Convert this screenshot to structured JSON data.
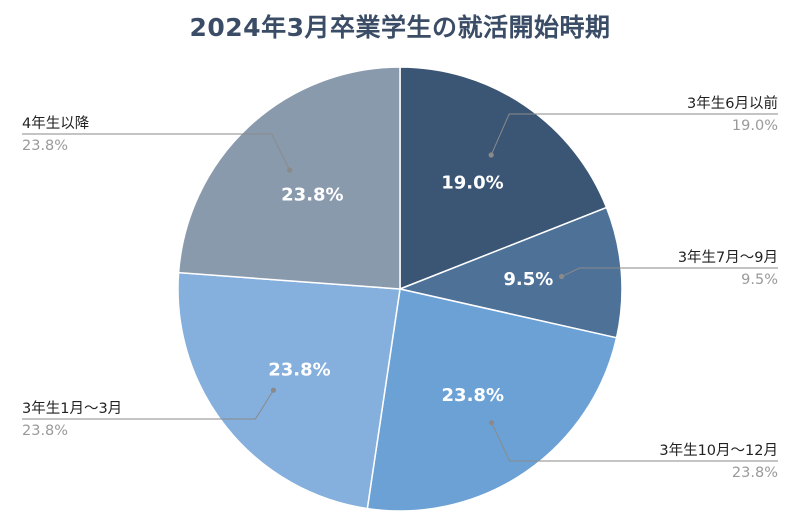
{
  "chart_data": {
    "type": "pie",
    "title": "2024年3月卒業学生の就活開始時期",
    "slices": [
      {
        "label": "3年生6月以前",
        "value": 19.0,
        "display": "19.0%",
        "color": "#3b5575"
      },
      {
        "label": "3年生7月～9月",
        "value": 9.5,
        "display": "9.5%",
        "color": "#4e7198"
      },
      {
        "label": "3年生10月～12月",
        "value": 23.8,
        "display": "23.8%",
        "color": "#6ca1d5"
      },
      {
        "label": "3年生1月～3月",
        "value": 23.8,
        "display": "23.8%",
        "color": "#85afdc"
      },
      {
        "label": "4年生以降",
        "value": 23.8,
        "display": "23.8%",
        "color": "#8a9aad"
      }
    ],
    "legend": "none"
  }
}
